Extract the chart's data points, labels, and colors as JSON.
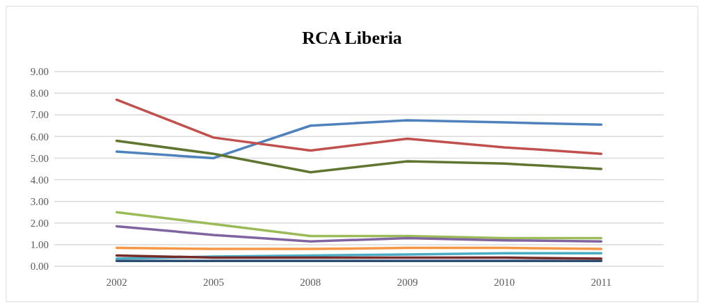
{
  "chart_data": {
    "type": "line",
    "title": "RCA Liberia",
    "categories": [
      "2002",
      "2005",
      "2008",
      "2009",
      "2010",
      "2011"
    ],
    "series": [
      {
        "color": "#4f81bd",
        "values": [
          5.3,
          5.0,
          6.5,
          6.75,
          6.65,
          6.55
        ]
      },
      {
        "color": "#c0504d",
        "values": [
          7.7,
          5.95,
          5.35,
          5.9,
          5.5,
          5.2
        ]
      },
      {
        "color": "#9bbb59",
        "values": [
          2.5,
          1.95,
          1.4,
          1.4,
          1.3,
          1.3
        ]
      },
      {
        "color": "#8064a2",
        "values": [
          1.85,
          1.45,
          1.15,
          1.3,
          1.2,
          1.15
        ]
      },
      {
        "color": "#4bacc6",
        "values": [
          0.35,
          0.45,
          0.5,
          0.55,
          0.6,
          0.6
        ]
      },
      {
        "color": "#f79646",
        "values": [
          0.85,
          0.8,
          0.8,
          0.85,
          0.85,
          0.8
        ]
      },
      {
        "color": "#2c4d75",
        "values": [
          0.25,
          0.25,
          0.25,
          0.25,
          0.25,
          0.25
        ]
      },
      {
        "color": "#772c2a",
        "values": [
          0.5,
          0.4,
          0.4,
          0.4,
          0.4,
          0.35
        ]
      },
      {
        "color": "#5f7530",
        "values": [
          5.8,
          5.2,
          4.35,
          4.85,
          4.75,
          4.5
        ]
      }
    ],
    "ylim": [
      0,
      9
    ],
    "yticks": [
      {
        "value": 0,
        "label": "0.00"
      },
      {
        "value": 1,
        "label": "1.00"
      },
      {
        "value": 2,
        "label": "2.00"
      },
      {
        "value": 3,
        "label": "3.00"
      },
      {
        "value": 4,
        "label": "4.00"
      },
      {
        "value": 5,
        "label": "5.00"
      },
      {
        "value": 6,
        "label": "6.00"
      },
      {
        "value": 7,
        "label": "7.00"
      },
      {
        "value": 8,
        "label": "8.00"
      },
      {
        "value": 9,
        "label": "9.00"
      }
    ],
    "grid": "y",
    "marker": "none",
    "line_style": "solid"
  }
}
